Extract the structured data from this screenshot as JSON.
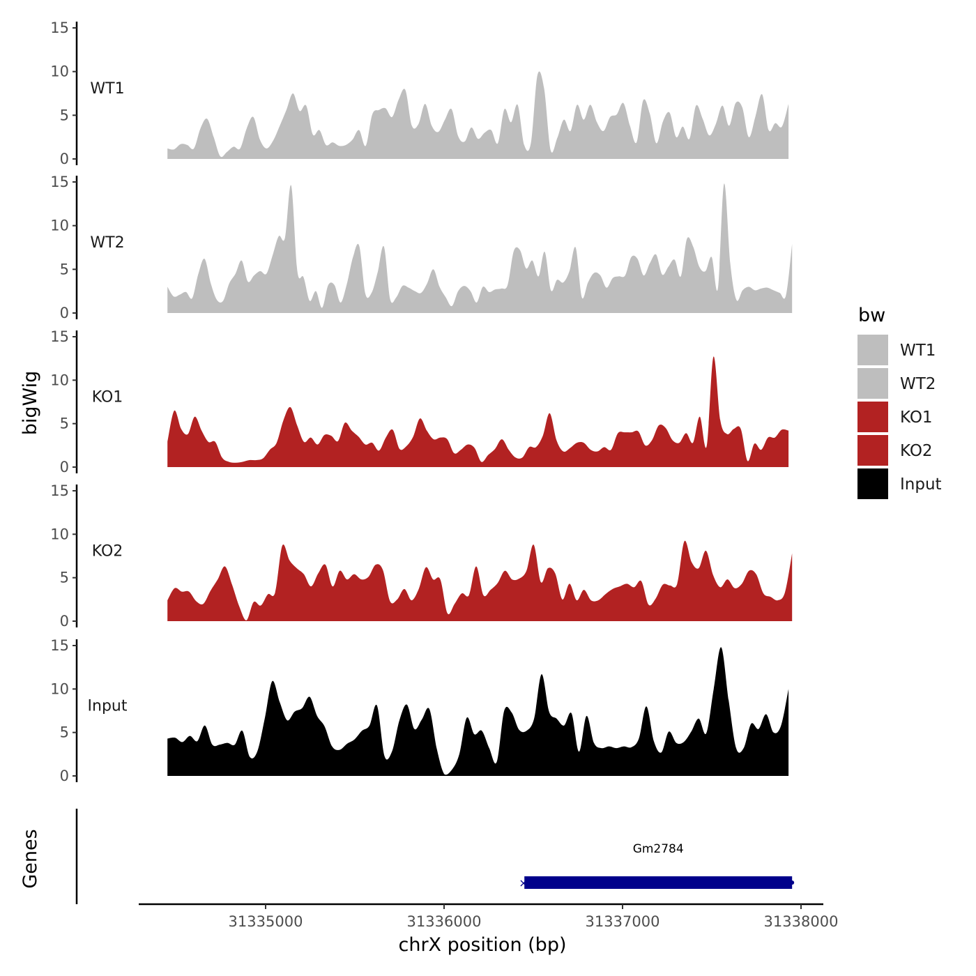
{
  "chart_data": {
    "type": "area",
    "title": "",
    "xlabel": "chrX position (bp)",
    "ylabel": "bigWig",
    "gene_track_label": "Genes",
    "xlim": [
      31334400,
      31337950
    ],
    "x_ticks": [
      31335000,
      31336000,
      31337000,
      31338000
    ],
    "x_tick_labels": [
      "31335000",
      "31336000",
      "31337000",
      "31338000"
    ],
    "ylim": [
      0,
      15
    ],
    "y_ticks": [
      0,
      5,
      10,
      15
    ],
    "y_tick_labels": [
      "0",
      "5",
      "10",
      "15"
    ],
    "legend": {
      "title": "bw",
      "position": "right"
    },
    "series": [
      {
        "name": "WT1",
        "color": "#bebebe",
        "x_start": 31334450,
        "x_end": 31337930,
        "values": [
          1.2,
          1.1,
          1.7,
          1.6,
          1.2,
          3.5,
          4.6,
          2.5,
          0.3,
          0.8,
          1.4,
          1.2,
          3.5,
          4.8,
          2.2,
          1.2,
          2.1,
          3.8,
          5.6,
          7.5,
          5.5,
          6.1,
          2.8,
          3.3,
          1.6,
          1.9,
          1.5,
          1.6,
          2.2,
          3.3,
          1.5,
          5.1,
          5.6,
          5.8,
          4.8,
          6.8,
          7.9,
          3.8,
          4.0,
          6.3,
          3.8,
          3.1,
          4.5,
          5.7,
          2.6,
          2.0,
          3.6,
          2.3,
          3.0,
          3.3,
          1.8,
          5.7,
          4.2,
          6.2,
          1.6,
          1.8,
          9.6,
          8.1,
          1.0,
          2.4,
          4.5,
          3.2,
          6.2,
          4.5,
          6.2,
          4.2,
          3.2,
          4.8,
          5.1,
          6.4,
          3.8,
          1.9,
          6.7,
          5.2,
          1.8,
          4.3,
          5.3,
          2.5,
          3.7,
          2.3,
          6.1,
          4.6,
          2.7,
          4.0,
          6.1,
          3.8,
          6.4,
          5.9,
          2.5,
          4.9,
          7.4,
          3.3,
          4.1,
          3.7,
          6.3
        ]
      },
      {
        "name": "WT2",
        "color": "#bebebe",
        "x_start": 31334450,
        "x_end": 31337950,
        "values": [
          3.0,
          1.9,
          2.1,
          2.4,
          1.7,
          4.5,
          6.2,
          3.4,
          1.5,
          1.4,
          3.4,
          4.5,
          6.0,
          3.6,
          4.3,
          4.8,
          4.5,
          6.6,
          8.8,
          8.6,
          14.6,
          4.8,
          4.1,
          1.4,
          2.5,
          0.6,
          3.2,
          3.2,
          1.2,
          3.3,
          6.4,
          7.7,
          2.2,
          2.3,
          4.7,
          7.6,
          1.6,
          1.8,
          3.1,
          2.9,
          2.5,
          2.3,
          3.4,
          5.0,
          3.0,
          1.8,
          0.8,
          2.5,
          3.1,
          2.5,
          1.2,
          3.0,
          2.4,
          2.7,
          2.8,
          3.2,
          7.1,
          7.2,
          5.1,
          6.0,
          4.2,
          7.0,
          2.6,
          3.8,
          3.5,
          4.8,
          7.5,
          1.8,
          3.5,
          4.6,
          4.3,
          2.9,
          4.0,
          4.2,
          4.3,
          6.4,
          6.2,
          4.3,
          5.7,
          6.7,
          4.4,
          5.3,
          6.1,
          4.2,
          8.5,
          7.6,
          5.3,
          4.8,
          6.4,
          2.8,
          14.8,
          5.7,
          1.5,
          2.6,
          3.0,
          2.6,
          2.8,
          2.9,
          2.6,
          2.3,
          2.0,
          7.9
        ]
      },
      {
        "name": "KO1",
        "color": "#b22222",
        "x_start": 31334450,
        "x_end": 31337930,
        "values": [
          2.9,
          6.5,
          4.4,
          3.8,
          5.8,
          4.2,
          2.9,
          2.9,
          1.1,
          0.6,
          0.5,
          0.6,
          0.8,
          0.8,
          1.0,
          2.0,
          2.8,
          5.4,
          6.9,
          4.8,
          2.9,
          3.4,
          2.6,
          3.7,
          3.6,
          3.0,
          5.1,
          4.2,
          3.5,
          2.6,
          2.8,
          1.9,
          3.4,
          4.3,
          2.1,
          2.4,
          3.5,
          5.6,
          4.2,
          3.2,
          3.4,
          3.2,
          1.6,
          2.0,
          2.6,
          2.2,
          0.6,
          1.4,
          2.1,
          3.2,
          2.0,
          1.1,
          1.1,
          2.3,
          2.3,
          3.6,
          6.2,
          3.1,
          1.8,
          2.2,
          2.8,
          2.8,
          2.0,
          1.8,
          2.3,
          2.0,
          3.9,
          4.0,
          4.0,
          4.1,
          2.5,
          3.1,
          4.8,
          4.5,
          3.1,
          2.8,
          3.9,
          2.8,
          5.8,
          2.4,
          12.7,
          5.4,
          3.8,
          4.4,
          4.4,
          0.7,
          2.7,
          2.0,
          3.4,
          3.4,
          4.3,
          4.2
        ]
      },
      {
        "name": "KO2",
        "color": "#b22222",
        "x_start": 31334450,
        "x_end": 31337950,
        "values": [
          2.4,
          3.8,
          3.4,
          3.4,
          2.3,
          2.0,
          3.5,
          4.8,
          6.3,
          4.2,
          1.7,
          0.1,
          2.2,
          1.8,
          3.1,
          3.3,
          8.7,
          7.0,
          6.1,
          5.4,
          4.0,
          5.5,
          6.5,
          4.0,
          5.8,
          4.8,
          5.4,
          4.8,
          5.1,
          6.5,
          5.9,
          2.3,
          2.5,
          3.7,
          2.4,
          3.7,
          6.2,
          4.8,
          4.8,
          0.9,
          2.0,
          3.2,
          3.0,
          6.3,
          3.0,
          3.6,
          4.4,
          5.8,
          4.8,
          4.9,
          5.8,
          8.8,
          4.5,
          6.1,
          5.5,
          2.5,
          4.3,
          2.4,
          3.6,
          2.4,
          2.4,
          3.1,
          3.7,
          4.0,
          4.3,
          3.9,
          4.6,
          1.9,
          2.6,
          4.2,
          4.1,
          4.3,
          9.2,
          6.8,
          6.1,
          8.1,
          5.3,
          3.9,
          4.8,
          3.8,
          4.3,
          5.8,
          5.4,
          3.2,
          2.8,
          2.4,
          3.3,
          7.8
        ]
      },
      {
        "name": "Input",
        "color": "#000000",
        "x_start": 31334450,
        "x_end": 31337930,
        "values": [
          4.3,
          4.4,
          3.9,
          4.6,
          4.0,
          5.8,
          3.6,
          3.6,
          3.8,
          3.6,
          5.2,
          2.2,
          2.8,
          6.6,
          10.9,
          8.5,
          6.4,
          7.4,
          7.8,
          9.1,
          6.9,
          5.7,
          3.4,
          3.0,
          3.7,
          4.2,
          5.2,
          5.8,
          8.1,
          2.3,
          2.8,
          6.4,
          8.2,
          5.4,
          6.5,
          7.7,
          3.1,
          0.2,
          0.7,
          2.5,
          6.7,
          4.8,
          5.2,
          3.2,
          1.6,
          7.5,
          7.3,
          5.3,
          5.2,
          6.6,
          11.7,
          7.4,
          6.6,
          5.8,
          7.2,
          2.8,
          6.9,
          3.8,
          3.2,
          3.4,
          3.2,
          3.4,
          3.3,
          4.3,
          8.0,
          4.0,
          2.7,
          5.1,
          3.8,
          3.9,
          5.1,
          6.6,
          4.9,
          10.0,
          14.8,
          8.7,
          3.2,
          3.2,
          6.0,
          5.4,
          7.1,
          5.0,
          5.8,
          10.0
        ]
      }
    ],
    "genes": [
      {
        "name": "Gm2784",
        "start": 31336450,
        "end": 31337950,
        "color": "#00008b"
      }
    ]
  }
}
